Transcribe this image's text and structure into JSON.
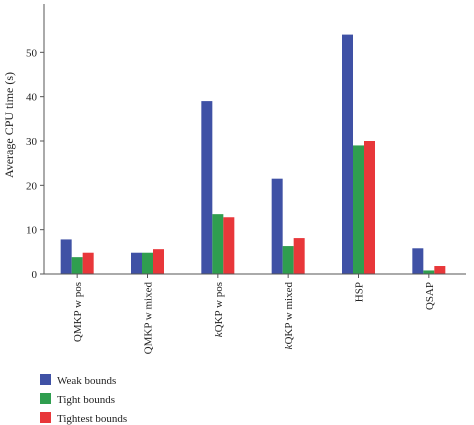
{
  "chart_data": {
    "type": "bar",
    "title": "",
    "xlabel": "",
    "ylabel": "Average CPU time (s)",
    "ylim": [
      0,
      60
    ],
    "yticks": [
      0,
      10,
      20,
      30,
      40,
      50
    ],
    "grid": false,
    "legend_position": "bottom-left",
    "categories": [
      "QMKP w pos",
      "QMKP w mixed",
      "kQKP w pos",
      "kQKP w mixed",
      "HSP",
      "QSAP"
    ],
    "series": [
      {
        "name": "Weak bounds",
        "color": "#3f51a5",
        "values": [
          7.8,
          4.8,
          39,
          21.5,
          54,
          5.8
        ]
      },
      {
        "name": "Tight bounds",
        "color": "#2f9e4f",
        "values": [
          3.8,
          4.8,
          13.5,
          6.3,
          29,
          0.8
        ]
      },
      {
        "name": "Tightest bounds",
        "color": "#e8373a",
        "values": [
          4.8,
          5.6,
          12.8,
          8.1,
          30,
          1.8
        ]
      }
    ]
  }
}
